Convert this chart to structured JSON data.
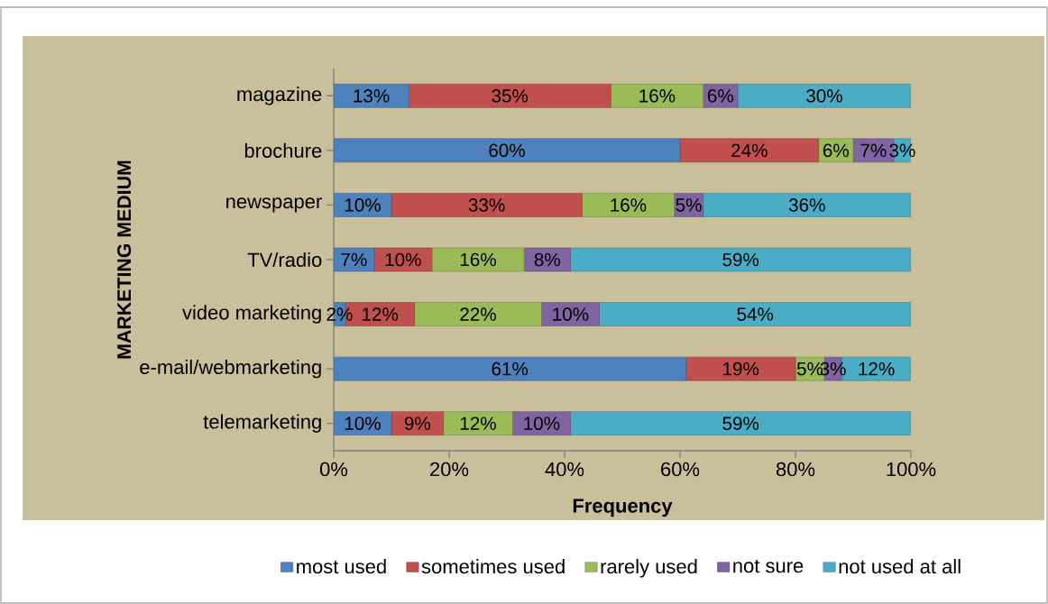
{
  "chart_data": {
    "type": "bar",
    "orientation": "horizontal",
    "stacked": true,
    "xlabel": "Frequency",
    "ylabel": "MARKETING MEDIUM",
    "categories": [
      "magazine",
      "brochure",
      "newspaper",
      "TV/radio",
      "video marketing",
      "e-mail/webmarketing",
      "telemarketing"
    ],
    "series": [
      {
        "name": "most used",
        "color": "#4f81bd",
        "values": [
          13,
          60,
          10,
          7,
          2,
          61,
          10
        ],
        "value_labels": [
          "13%",
          "60%",
          "10%",
          "7%",
          "2%",
          "61%",
          "10%"
        ]
      },
      {
        "name": "sometimes used",
        "color": "#c0504d",
        "values": [
          35,
          24,
          33,
          10,
          12,
          19,
          9
        ],
        "value_labels": [
          "35%",
          "24%",
          "33%",
          "10%",
          "12%",
          "19%",
          "9%"
        ]
      },
      {
        "name": "rarely used",
        "color": "#9bbb59",
        "values": [
          16,
          6,
          16,
          16,
          22,
          5,
          12
        ],
        "value_labels": [
          "16%",
          "6%",
          "16%",
          "16%",
          "22%",
          "5%",
          "12%"
        ]
      },
      {
        "name": "not sure",
        "color": "#8064a2",
        "values": [
          6,
          7,
          5,
          8,
          10,
          3,
          10
        ],
        "value_labels": [
          "6%",
          "7%",
          "5%",
          "8%",
          "10%",
          "3%",
          "10%"
        ]
      },
      {
        "name": "not used at all",
        "color": "#4bacc6",
        "values": [
          30,
          3,
          36,
          59,
          54,
          12,
          59
        ],
        "value_labels": [
          "30%",
          "3%",
          "36%",
          "59%",
          "54%",
          "12%",
          "59%"
        ]
      }
    ],
    "xlim": [
      0,
      100
    ],
    "xticks": [
      {
        "value": 0,
        "label": "0%"
      },
      {
        "value": 20,
        "label": "20%"
      },
      {
        "value": 40,
        "label": "40%"
      },
      {
        "value": 60,
        "label": "60%"
      },
      {
        "value": 80,
        "label": "80%"
      },
      {
        "value": 100,
        "label": "100%"
      }
    ],
    "legend": "bottom"
  }
}
